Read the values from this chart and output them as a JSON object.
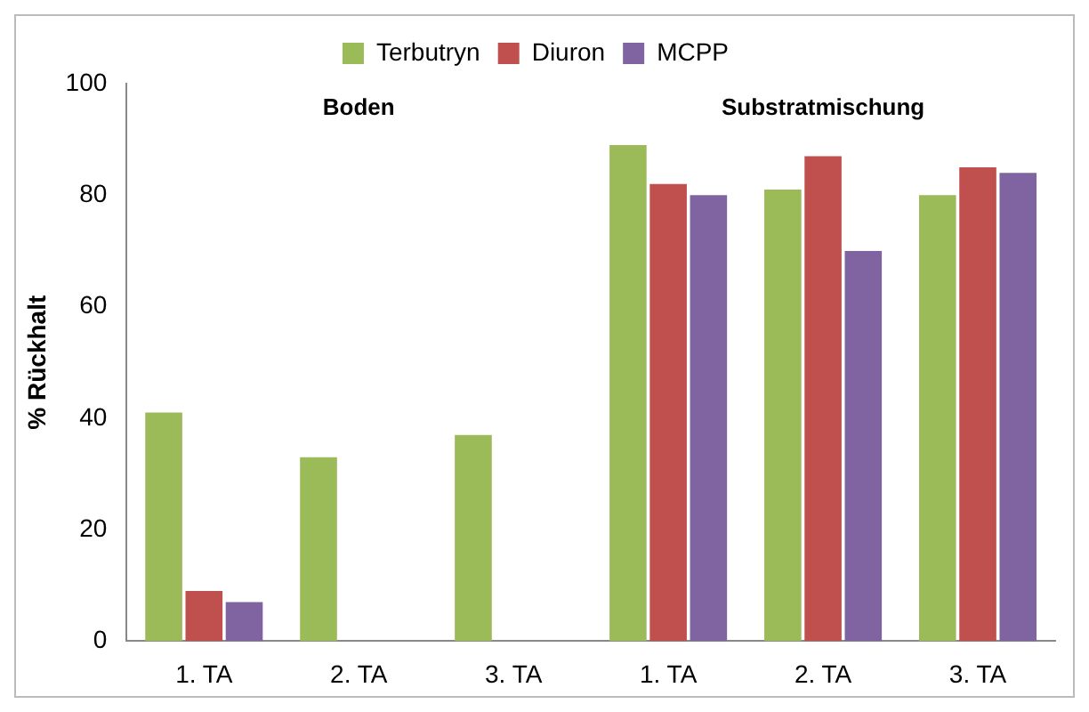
{
  "chart_data": {
    "type": "bar",
    "ylabel": "% Rückhalt",
    "categories": [
      "1. TA",
      "2. TA",
      "3. TA",
      "1. TA",
      "2. TA",
      "3. TA"
    ],
    "series": [
      {
        "name": "Terbutryn",
        "color": "#9bbb59",
        "values": [
          41,
          33,
          37,
          89,
          81,
          80
        ]
      },
      {
        "name": "Diuron",
        "color": "#c0504d",
        "values": [
          9,
          0,
          0,
          82,
          87,
          85
        ]
      },
      {
        "name": "MCPP",
        "color": "#8064a2",
        "values": [
          7,
          0,
          0,
          80,
          70,
          84
        ]
      }
    ],
    "ylim": [
      0,
      100
    ],
    "yticks": [
      0,
      20,
      40,
      60,
      80,
      100
    ],
    "grid": false,
    "legend": "top",
    "annotations": [
      "Boden",
      "Substratmischung"
    ]
  }
}
